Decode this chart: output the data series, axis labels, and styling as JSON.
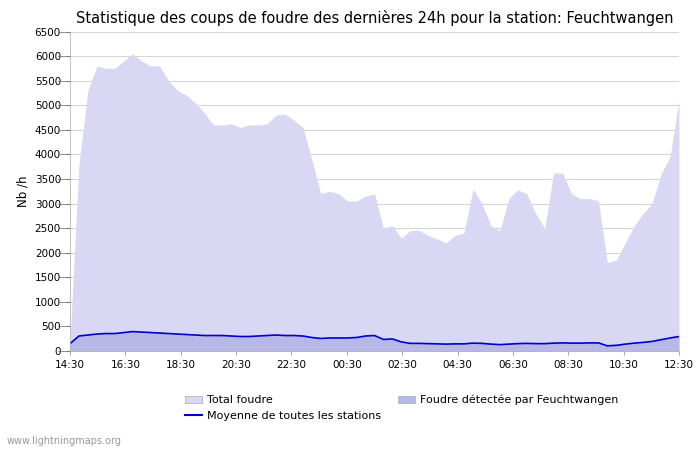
{
  "title": "Statistique des coups de foudre des dernières 24h pour la station: Feuchtwangen",
  "ylabel": "Nb /h",
  "watermark": "www.lightningmaps.org",
  "ylim": [
    0,
    6500
  ],
  "yticks": [
    0,
    500,
    1000,
    1500,
    2000,
    2500,
    3000,
    3500,
    4000,
    4500,
    5000,
    5500,
    6000,
    6500
  ],
  "xtick_labels": [
    "14:30",
    "16:30",
    "18:30",
    "20:30",
    "22:30",
    "00:30",
    "02:30",
    "04:30",
    "06:30",
    "08:30",
    "10:30",
    "12:30"
  ],
  "bg_color": "#ffffff",
  "plot_bg_color": "#ffffff",
  "grid_color": "#cccccc",
  "fill_total_color": "#d8d8f5",
  "fill_detected_color": "#b8b8e8",
  "line_color": "#0000cc",
  "title_fontsize": 10.5,
  "total_foudre": [
    200,
    3800,
    5300,
    5800,
    5750,
    5750,
    5900,
    6050,
    5900,
    5800,
    5800,
    5500,
    5300,
    5200,
    5050,
    4850,
    4600,
    4600,
    4620,
    4550,
    4600,
    4600,
    4620,
    4800,
    4820,
    4700,
    4550,
    3900,
    3200,
    3250,
    3200,
    3050,
    3050,
    3150,
    3200,
    2500,
    2550,
    2300,
    2450,
    2450,
    2350,
    2280,
    2200,
    2350,
    2400,
    3300,
    3000,
    2550,
    2450,
    3100,
    3280,
    3200,
    2800,
    2500,
    3620,
    3620,
    3200,
    3100,
    3100,
    3060,
    1800,
    1850,
    2200,
    2550,
    2800,
    3000,
    3600,
    3950,
    5100
  ],
  "detected": [
    160,
    320,
    340,
    360,
    370,
    370,
    390,
    410,
    400,
    390,
    380,
    370,
    360,
    350,
    340,
    330,
    330,
    330,
    320,
    310,
    310,
    320,
    330,
    340,
    330,
    330,
    320,
    290,
    270,
    280,
    280,
    280,
    290,
    320,
    330,
    250,
    260,
    200,
    170,
    170,
    165,
    160,
    155,
    160,
    160,
    175,
    170,
    155,
    145,
    155,
    165,
    170,
    165,
    165,
    175,
    180,
    175,
    175,
    180,
    180,
    120,
    130,
    155,
    175,
    190,
    210,
    245,
    280,
    310
  ],
  "moyenne": [
    150,
    305,
    325,
    345,
    355,
    355,
    375,
    395,
    385,
    375,
    365,
    355,
    345,
    335,
    325,
    315,
    315,
    315,
    305,
    295,
    295,
    305,
    315,
    325,
    315,
    315,
    305,
    275,
    255,
    265,
    265,
    265,
    275,
    305,
    315,
    235,
    245,
    185,
    155,
    155,
    150,
    145,
    140,
    145,
    145,
    160,
    155,
    140,
    130,
    140,
    150,
    155,
    150,
    150,
    160,
    165,
    160,
    160,
    165,
    165,
    105,
    115,
    140,
    160,
    175,
    195,
    230,
    265,
    295
  ]
}
